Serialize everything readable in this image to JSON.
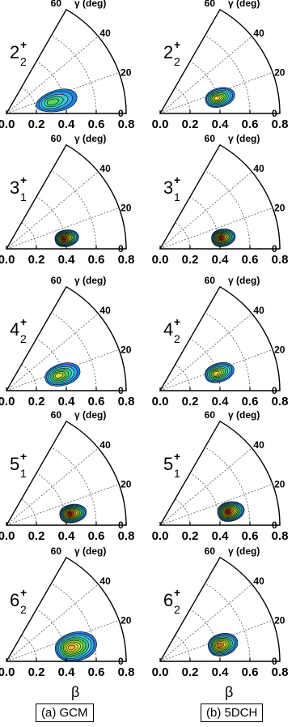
{
  "chart_data": {
    "type": "heatmap",
    "description_axes": {
      "radial_axis": {
        "label": "β",
        "ticks": [
          "0.0",
          "0.2",
          "0.4",
          "0.6",
          "0.8"
        ],
        "range": [
          0,
          0.8
        ]
      },
      "angular_axis": {
        "label": "γ (deg)",
        "ticks": [
          "0",
          "20",
          "40",
          "60"
        ],
        "range": [
          0,
          60
        ]
      }
    },
    "columns": [
      {
        "label": "(a) GCM",
        "panels": [
          {
            "state": {
              "J": "2",
              "sub": "2"
            },
            "peak": {
              "beta": 0.31,
              "gamma": 14
            },
            "spread": {
              "beta": 0.14,
              "gamma": 12
            },
            "max_level": 4
          },
          {
            "state": {
              "J": "3",
              "sub": "1"
            },
            "peak": {
              "beta": 0.39,
              "gamma": 10
            },
            "spread": {
              "beta": 0.08,
              "gamma": 8
            },
            "max_level": 11
          },
          {
            "state": {
              "J": "4",
              "sub": "2"
            },
            "peak": {
              "beta": 0.36,
              "gamma": 16
            },
            "spread": {
              "beta": 0.12,
              "gamma": 11
            },
            "max_level": 6
          },
          {
            "state": {
              "J": "5",
              "sub": "1"
            },
            "peak": {
              "beta": 0.43,
              "gamma": 10
            },
            "spread": {
              "beta": 0.09,
              "gamma": 8
            },
            "max_level": 11
          },
          {
            "state": {
              "J": "6",
              "sub": "2"
            },
            "peak": {
              "beta": 0.44,
              "gamma": 12
            },
            "spread": {
              "beta": 0.14,
              "gamma": 12
            },
            "max_level": 8
          }
        ]
      },
      {
        "label": "(b) 5DCH",
        "panels": [
          {
            "state": {
              "J": "2",
              "sub": "2"
            },
            "peak": {
              "beta": 0.39,
              "gamma": 15
            },
            "spread": {
              "beta": 0.1,
              "gamma": 9
            },
            "max_level": 7
          },
          {
            "state": {
              "J": "3",
              "sub": "1"
            },
            "peak": {
              "beta": 0.41,
              "gamma": 10
            },
            "spread": {
              "beta": 0.08,
              "gamma": 8
            },
            "max_level": 11
          },
          {
            "state": {
              "J": "4",
              "sub": "2"
            },
            "peak": {
              "beta": 0.39,
              "gamma": 17
            },
            "spread": {
              "beta": 0.1,
              "gamma": 9
            },
            "max_level": 7
          },
          {
            "state": {
              "J": "5",
              "sub": "1"
            },
            "peak": {
              "beta": 0.46,
              "gamma": 11
            },
            "spread": {
              "beta": 0.09,
              "gamma": 8
            },
            "max_level": 11
          },
          {
            "state": {
              "J": "6",
              "sub": "2"
            },
            "peak": {
              "beta": 0.41,
              "gamma": 15
            },
            "spread": {
              "beta": 0.1,
              "gamma": 10
            },
            "max_level": 9
          }
        ]
      }
    ],
    "color_levels": [
      "#1f7fe0",
      "#38a8f0",
      "#46d2d6",
      "#3ed29a",
      "#5cd653",
      "#9ade3c",
      "#d6e63a",
      "#f8e53a",
      "#f7b231",
      "#ee7a23",
      "#d6421c",
      "#9a1210"
    ]
  }
}
